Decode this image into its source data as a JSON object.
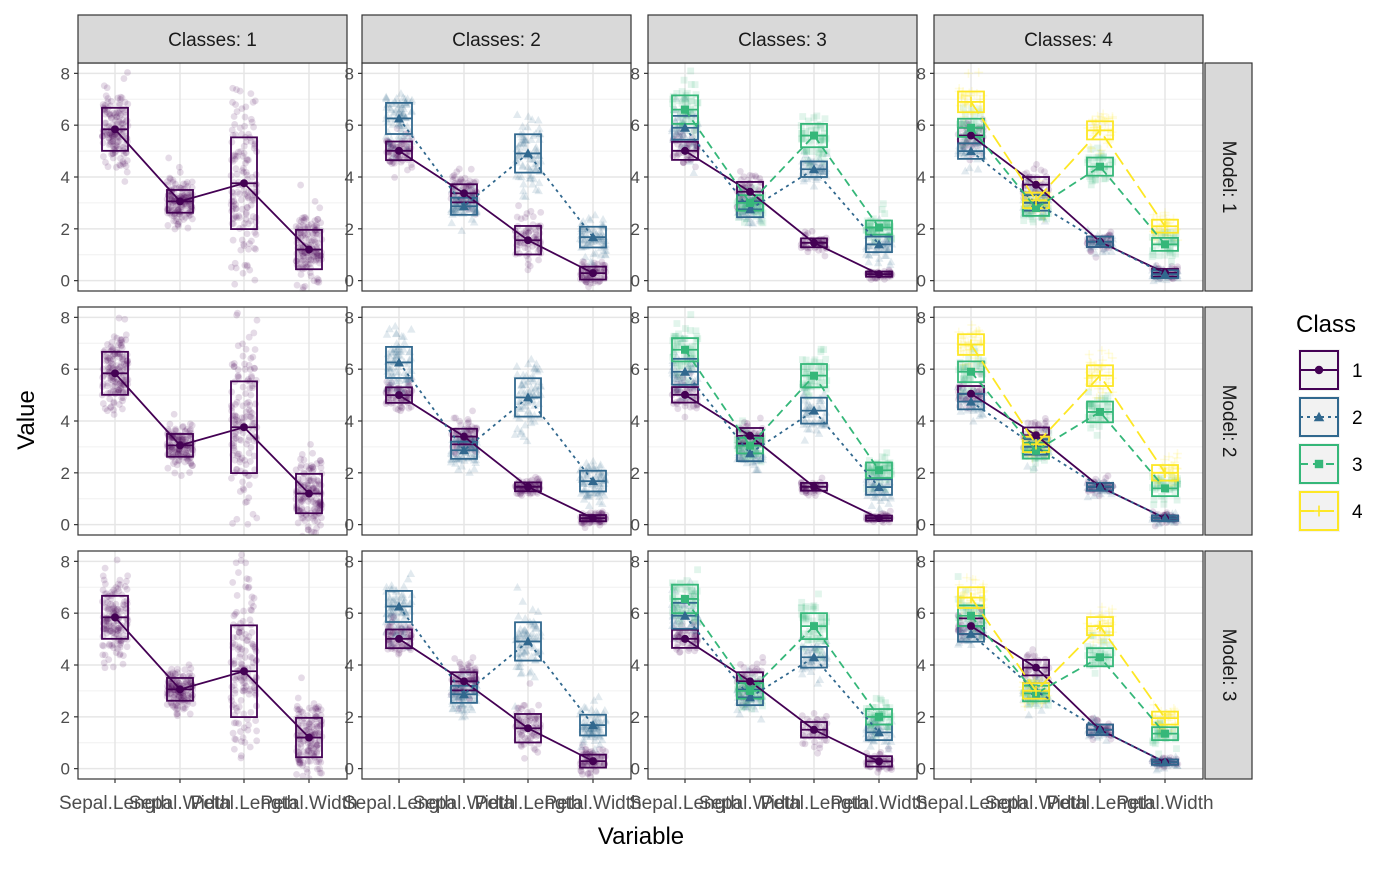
{
  "chart_data": {
    "type": "faceted-line-box",
    "xlabel": "Variable",
    "ylabel": "Value",
    "ylim": [
      -0.4,
      8.4
    ],
    "y_ticks": [
      0,
      2,
      4,
      6,
      8
    ],
    "categories": [
      "Sepal.Length",
      "Sepal.Width",
      "Petal.Length",
      "Petal.Width"
    ],
    "grid": true,
    "legend": {
      "title": "Class",
      "placement": "right",
      "entries": [
        {
          "label": "1",
          "color": "#440154",
          "marker": "circle",
          "linetype": "solid"
        },
        {
          "label": "2",
          "color": "#31688E",
          "marker": "triangle",
          "linetype": "dotted"
        },
        {
          "label": "3",
          "color": "#35B779",
          "marker": "square",
          "linetype": "dashed"
        },
        {
          "label": "4",
          "color": "#FDE725",
          "marker": "plus",
          "linetype": "longdash"
        }
      ]
    },
    "column_strips": [
      "Classes: 1",
      "Classes: 2",
      "Classes: 3",
      "Classes: 4"
    ],
    "row_strips": [
      "Model: 1",
      "Model: 2",
      "Model: 3"
    ],
    "panels": [
      [
        {
          "classes": [
            {
              "class": 1,
              "mean": [
                5.84,
                3.06,
                3.76,
                1.2
              ],
              "sd": [
                0.83,
                0.44,
                1.77,
                0.76
              ]
            }
          ]
        },
        {
          "classes": [
            {
              "class": 1,
              "mean": [
                5.01,
                3.37,
                1.56,
                0.29
              ],
              "sd": [
                0.36,
                0.35,
                0.55,
                0.25
              ]
            },
            {
              "class": 2,
              "mean": [
                6.26,
                2.87,
                4.91,
                1.68
              ],
              "sd": [
                0.6,
                0.33,
                0.74,
                0.4
              ]
            }
          ]
        },
        {
          "classes": [
            {
              "class": 1,
              "mean": [
                5.01,
                3.43,
                1.46,
                0.25
              ],
              "sd": [
                0.35,
                0.38,
                0.17,
                0.1
              ]
            },
            {
              "class": 2,
              "mean": [
                5.9,
                2.75,
                4.3,
                1.4
              ],
              "sd": [
                0.46,
                0.3,
                0.3,
                0.3
              ]
            },
            {
              "class": 3,
              "mean": [
                6.6,
                3.0,
                5.6,
                2.05
              ],
              "sd": [
                0.55,
                0.3,
                0.45,
                0.27
              ]
            }
          ]
        },
        {
          "classes": [
            {
              "class": 1,
              "mean": [
                5.6,
                3.7,
                1.5,
                0.3
              ],
              "sd": [
                0.3,
                0.3,
                0.2,
                0.15
              ]
            },
            {
              "class": 2,
              "mean": [
                5.0,
                3.0,
                1.5,
                0.25
              ],
              "sd": [
                0.3,
                0.3,
                0.2,
                0.15
              ]
            },
            {
              "class": 3,
              "mean": [
                5.9,
                2.8,
                4.4,
                1.4
              ],
              "sd": [
                0.35,
                0.3,
                0.35,
                0.25
              ]
            },
            {
              "class": 4,
              "mean": [
                6.9,
                3.1,
                5.8,
                2.1
              ],
              "sd": [
                0.4,
                0.3,
                0.35,
                0.25
              ]
            }
          ]
        }
      ],
      [
        {
          "classes": [
            {
              "class": 1,
              "mean": [
                5.84,
                3.06,
                3.76,
                1.2
              ],
              "sd": [
                0.83,
                0.44,
                1.77,
                0.76
              ]
            }
          ]
        },
        {
          "classes": [
            {
              "class": 1,
              "mean": [
                5.0,
                3.4,
                1.46,
                0.25
              ],
              "sd": [
                0.3,
                0.3,
                0.17,
                0.12
              ]
            },
            {
              "class": 2,
              "mean": [
                6.26,
                2.87,
                4.91,
                1.68
              ],
              "sd": [
                0.6,
                0.33,
                0.74,
                0.4
              ]
            }
          ]
        },
        {
          "classes": [
            {
              "class": 1,
              "mean": [
                5.01,
                3.43,
                1.46,
                0.25
              ],
              "sd": [
                0.3,
                0.3,
                0.15,
                0.1
              ]
            },
            {
              "class": 2,
              "mean": [
                5.9,
                2.75,
                4.4,
                1.45
              ],
              "sd": [
                0.5,
                0.3,
                0.5,
                0.3
              ]
            },
            {
              "class": 3,
              "mean": [
                6.75,
                3.05,
                5.75,
                2.1
              ],
              "sd": [
                0.45,
                0.3,
                0.45,
                0.3
              ]
            }
          ]
        },
        {
          "classes": [
            {
              "class": 1,
              "mean": [
                5.05,
                3.45,
                1.46,
                0.25
              ],
              "sd": [
                0.3,
                0.3,
                0.15,
                0.1
              ]
            },
            {
              "class": 2,
              "mean": [
                4.75,
                3.0,
                1.46,
                0.25
              ],
              "sd": [
                0.3,
                0.3,
                0.15,
                0.1
              ]
            },
            {
              "class": 3,
              "mean": [
                5.9,
                2.85,
                4.35,
                1.4
              ],
              "sd": [
                0.4,
                0.3,
                0.4,
                0.3
              ]
            },
            {
              "class": 4,
              "mean": [
                6.95,
                3.1,
                5.75,
                2.0
              ],
              "sd": [
                0.4,
                0.3,
                0.4,
                0.3
              ]
            }
          ]
        }
      ],
      [
        {
          "classes": [
            {
              "class": 1,
              "mean": [
                5.84,
                3.06,
                3.76,
                1.2
              ],
              "sd": [
                0.83,
                0.44,
                1.77,
                0.76
              ]
            }
          ]
        },
        {
          "classes": [
            {
              "class": 1,
              "mean": [
                5.01,
                3.37,
                1.56,
                0.29
              ],
              "sd": [
                0.36,
                0.35,
                0.55,
                0.25
              ]
            },
            {
              "class": 2,
              "mean": [
                6.26,
                2.87,
                4.91,
                1.68
              ],
              "sd": [
                0.6,
                0.33,
                0.74,
                0.4
              ]
            }
          ]
        },
        {
          "classes": [
            {
              "class": 1,
              "mean": [
                5.01,
                3.37,
                1.5,
                0.28
              ],
              "sd": [
                0.35,
                0.35,
                0.3,
                0.2
              ]
            },
            {
              "class": 2,
              "mean": [
                5.9,
                2.75,
                4.3,
                1.4
              ],
              "sd": [
                0.5,
                0.3,
                0.4,
                0.3
              ]
            },
            {
              "class": 3,
              "mean": [
                6.55,
                3.0,
                5.5,
                2.0
              ],
              "sd": [
                0.55,
                0.3,
                0.5,
                0.3
              ]
            }
          ]
        },
        {
          "classes": [
            {
              "class": 1,
              "mean": [
                5.5,
                3.9,
                1.5,
                0.25
              ],
              "sd": [
                0.3,
                0.3,
                0.2,
                0.1
              ]
            },
            {
              "class": 2,
              "mean": [
                5.2,
                3.0,
                1.5,
                0.25
              ],
              "sd": [
                0.3,
                0.3,
                0.2,
                0.1
              ]
            },
            {
              "class": 3,
              "mean": [
                5.9,
                2.9,
                4.3,
                1.35
              ],
              "sd": [
                0.4,
                0.3,
                0.35,
                0.25
              ]
            },
            {
              "class": 4,
              "mean": [
                6.6,
                3.0,
                5.5,
                1.95
              ],
              "sd": [
                0.4,
                0.3,
                0.35,
                0.25
              ]
            }
          ]
        }
      ]
    ]
  }
}
